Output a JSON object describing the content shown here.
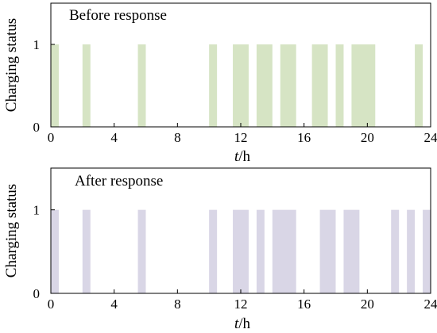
{
  "chart_data": [
    {
      "type": "bar",
      "title": "Before response",
      "xlabel_italic": "t",
      "xlabel_unit": "/h",
      "ylabel": "Charging status",
      "xlim": [
        0,
        24
      ],
      "ylim": [
        0,
        1.5
      ],
      "xticks": [
        "0",
        "4",
        "8",
        "12",
        "16",
        "20",
        "24"
      ],
      "yticks": [
        "0",
        "1"
      ],
      "color": "#d6e4c4",
      "intervals": [
        {
          "start": 0.0,
          "end": 0.5,
          "value": 1
        },
        {
          "start": 2.0,
          "end": 2.5,
          "value": 1
        },
        {
          "start": 5.5,
          "end": 6.0,
          "value": 1
        },
        {
          "start": 10.0,
          "end": 10.5,
          "value": 1
        },
        {
          "start": 11.5,
          "end": 12.5,
          "value": 1
        },
        {
          "start": 13.0,
          "end": 14.0,
          "value": 1
        },
        {
          "start": 14.5,
          "end": 15.5,
          "value": 1
        },
        {
          "start": 16.5,
          "end": 17.5,
          "value": 1
        },
        {
          "start": 18.0,
          "end": 18.5,
          "value": 1
        },
        {
          "start": 19.0,
          "end": 20.5,
          "value": 1
        },
        {
          "start": 23.0,
          "end": 23.5,
          "value": 1
        }
      ]
    },
    {
      "type": "bar",
      "title": "After response",
      "xlabel_italic": "t",
      "xlabel_unit": "/h",
      "ylabel": "Charging status",
      "xlim": [
        0,
        24
      ],
      "ylim": [
        0,
        1.5
      ],
      "xticks": [
        "0",
        "4",
        "8",
        "12",
        "16",
        "20",
        "24"
      ],
      "yticks": [
        "0",
        "1"
      ],
      "color": "#d9d6e6",
      "intervals": [
        {
          "start": 0.0,
          "end": 0.5,
          "value": 1
        },
        {
          "start": 2.0,
          "end": 2.5,
          "value": 1
        },
        {
          "start": 5.5,
          "end": 6.0,
          "value": 1
        },
        {
          "start": 10.0,
          "end": 10.5,
          "value": 1
        },
        {
          "start": 11.5,
          "end": 12.5,
          "value": 1
        },
        {
          "start": 13.0,
          "end": 13.5,
          "value": 1
        },
        {
          "start": 14.0,
          "end": 15.5,
          "value": 1
        },
        {
          "start": 17.0,
          "end": 18.0,
          "value": 1
        },
        {
          "start": 18.5,
          "end": 19.5,
          "value": 1
        },
        {
          "start": 21.5,
          "end": 22.0,
          "value": 1
        },
        {
          "start": 22.5,
          "end": 23.0,
          "value": 1
        },
        {
          "start": 23.5,
          "end": 24.0,
          "value": 1
        }
      ]
    }
  ]
}
